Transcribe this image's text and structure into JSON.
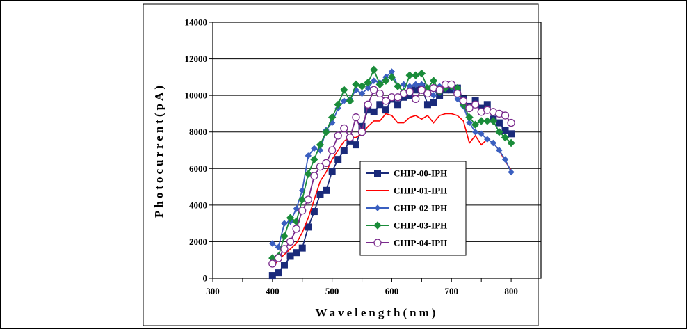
{
  "chart_data": {
    "type": "line",
    "title": "",
    "xlabel": "Wavelength(nm)",
    "ylabel": "Photocurrent(pA)",
    "xlim": [
      300,
      850
    ],
    "ylim": [
      0,
      14000
    ],
    "xticks": [
      300,
      400,
      500,
      600,
      700,
      800
    ],
    "yticks": [
      0,
      2000,
      4000,
      6000,
      8000,
      10000,
      12000,
      14000
    ],
    "grid": "horizontal",
    "legend_position": "center-right",
    "series": [
      {
        "name": "CHIP-00-IPH",
        "color": "#1a2a7a",
        "marker": "square",
        "x": [
          400,
          410,
          420,
          430,
          440,
          450,
          460,
          470,
          480,
          490,
          500,
          510,
          520,
          530,
          540,
          550,
          560,
          570,
          580,
          590,
          600,
          610,
          620,
          630,
          640,
          650,
          660,
          670,
          680,
          690,
          700,
          710,
          720,
          730,
          740,
          750,
          760,
          770,
          780,
          790,
          800
        ],
        "y": [
          150,
          300,
          700,
          1200,
          1400,
          1650,
          2800,
          3650,
          4600,
          4800,
          5850,
          6500,
          7000,
          7500,
          7300,
          8300,
          9200,
          9100,
          9500,
          9200,
          9800,
          9500,
          9900,
          10000,
          10300,
          10500,
          9500,
          9600,
          10000,
          10300,
          10300,
          10400,
          9800,
          9400,
          9700,
          9300,
          9500,
          8700,
          8500,
          8100,
          7900
        ]
      },
      {
        "name": "CHIP-01-IPH",
        "color": "#ff0000",
        "marker": "none",
        "x": [
          400,
          410,
          420,
          430,
          440,
          450,
          460,
          470,
          480,
          490,
          500,
          510,
          520,
          530,
          540,
          550,
          560,
          570,
          580,
          590,
          600,
          610,
          620,
          630,
          640,
          650,
          660,
          670,
          680,
          690,
          700,
          710,
          720,
          730,
          740,
          750,
          760,
          770,
          780,
          790,
          800
        ],
        "y": [
          600,
          1000,
          1300,
          1600,
          1900,
          2500,
          3300,
          4300,
          5300,
          5800,
          6500,
          7000,
          7500,
          7700,
          7700,
          7900,
          8300,
          8600,
          8600,
          9000,
          8900,
          8500,
          8500,
          8800,
          8900,
          8700,
          8900,
          8500,
          8900,
          9000,
          9000,
          8900,
          8600,
          7400,
          7800,
          7300,
          7600,
          7400,
          7000,
          6400,
          5900
        ]
      },
      {
        "name": "CHIP-02-IPH",
        "color": "#3a5fc0",
        "marker": "diamond-small",
        "x": [
          400,
          410,
          420,
          430,
          440,
          450,
          460,
          470,
          480,
          490,
          500,
          510,
          520,
          530,
          540,
          550,
          560,
          570,
          580,
          590,
          600,
          610,
          620,
          630,
          640,
          650,
          660,
          670,
          680,
          690,
          700,
          710,
          720,
          730,
          740,
          750,
          760,
          770,
          780,
          790,
          800
        ],
        "y": [
          1900,
          1700,
          3000,
          3100,
          3800,
          4800,
          6700,
          7100,
          7000,
          8100,
          8500,
          9300,
          9700,
          9800,
          10300,
          10100,
          10400,
          10800,
          10700,
          11000,
          11300,
          10500,
          10600,
          10500,
          10600,
          10600,
          10300,
          10000,
          10500,
          10400,
          10500,
          9800,
          9400,
          8500,
          8000,
          7900,
          7600,
          7400,
          7000,
          6500,
          5800
        ]
      },
      {
        "name": "CHIP-03-IPH",
        "color": "#1a8c3a",
        "marker": "diamond",
        "x": [
          400,
          410,
          420,
          430,
          440,
          450,
          460,
          470,
          480,
          490,
          500,
          510,
          520,
          530,
          540,
          550,
          560,
          570,
          580,
          590,
          600,
          610,
          620,
          630,
          640,
          650,
          660,
          670,
          680,
          690,
          700,
          710,
          720,
          730,
          740,
          750,
          760,
          770,
          780,
          790,
          800
        ],
        "y": [
          1100,
          1200,
          2300,
          3300,
          3100,
          4300,
          5700,
          6500,
          7300,
          8000,
          8800,
          9500,
          10300,
          9700,
          10600,
          10500,
          10700,
          11400,
          10600,
          10800,
          11000,
          10500,
          10200,
          11100,
          11100,
          11200,
          10400,
          10800,
          10200,
          10400,
          10500,
          10400,
          9500,
          8800,
          8400,
          8600,
          8600,
          8600,
          8000,
          7700,
          7400
        ]
      },
      {
        "name": "CHIP-04-IPH",
        "color": "#7a2a8c",
        "marker": "circle",
        "x": [
          400,
          410,
          420,
          430,
          440,
          450,
          460,
          470,
          480,
          490,
          500,
          510,
          520,
          530,
          540,
          550,
          560,
          570,
          580,
          590,
          600,
          610,
          620,
          630,
          640,
          650,
          660,
          670,
          680,
          690,
          700,
          710,
          720,
          730,
          740,
          750,
          760,
          770,
          780,
          790,
          800
        ],
        "y": [
          800,
          1100,
          1600,
          2000,
          2700,
          3700,
          4300,
          5600,
          6100,
          6300,
          7000,
          7800,
          8200,
          7700,
          8800,
          8000,
          9500,
          10300,
          10100,
          9700,
          9900,
          9900,
          10100,
          10200,
          9800,
          10300,
          10100,
          10400,
          10300,
          10600,
          10600,
          10100,
          9700,
          9300,
          9500,
          9100,
          9200,
          9100,
          9000,
          8900,
          8500
        ]
      }
    ]
  }
}
